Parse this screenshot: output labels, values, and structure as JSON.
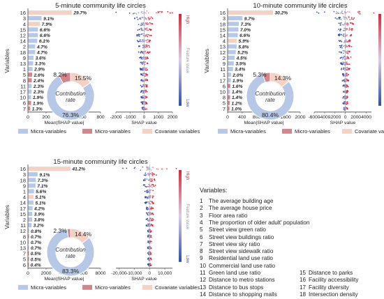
{
  "panels": [
    {
      "title": "5-minute community life circles",
      "rows": [
        {
          "var": "16",
          "value": 29.7,
          "label": "29.7%",
          "group": "covariate"
        },
        {
          "var": "3",
          "value": 9.1,
          "label": "9.1%",
          "group": "micra"
        },
        {
          "var": "4",
          "value": 7.9,
          "label": "7.9%",
          "group": "covariate"
        },
        {
          "var": "15",
          "value": 6.6,
          "label": "6.6%",
          "group": "micra"
        },
        {
          "var": "12",
          "value": 6.6,
          "label": "6.6%",
          "group": "micra"
        },
        {
          "var": "14",
          "value": 6.1,
          "label": "6.1%",
          "group": "micra"
        },
        {
          "var": "2",
          "value": 4.7,
          "label": "4.7%",
          "group": "micra"
        },
        {
          "var": "18",
          "value": 4.7,
          "label": "4.7%",
          "group": "micra"
        },
        {
          "var": "9",
          "value": 3.6,
          "label": "3.6%",
          "group": "micra"
        },
        {
          "var": "13",
          "value": 3.3,
          "label": "3.3%",
          "group": "micra"
        },
        {
          "var": "1",
          "value": 2.9,
          "label": "2.9%",
          "group": "micra"
        },
        {
          "var": "5",
          "value": 2.6,
          "label": "2.6%",
          "group": "micro"
        },
        {
          "var": "8",
          "value": 2.4,
          "label": "2.4%",
          "group": "micro"
        },
        {
          "var": "11",
          "value": 2.3,
          "label": "2.3%",
          "group": "micra"
        },
        {
          "var": "17",
          "value": 2.3,
          "label": "2.3%",
          "group": "micra"
        },
        {
          "var": "10",
          "value": 1.9,
          "label": "1.9%",
          "group": "micra"
        },
        {
          "var": "6",
          "value": 1.9,
          "label": "1.9%",
          "group": "micro"
        },
        {
          "var": "7",
          "value": 1.3,
          "label": "1.3%",
          "group": "micro"
        }
      ],
      "bar_axis": {
        "ticks": [
          "0",
          "200",
          "400",
          "600",
          "800"
        ],
        "max": 800,
        "label": "Mean|SHAP value|"
      },
      "bee_axis": {
        "ticks": [
          "-2000",
          "-1000",
          "0",
          "1000",
          "2000"
        ],
        "min": -2000,
        "max": 2000,
        "label": "SHAP value"
      },
      "donut": {
        "center": "Contribution rate",
        "micra": 76.3,
        "micro": 8.2,
        "covariate": 15.5,
        "micra_label": "76.3%",
        "micro_label": "8.2%",
        "covariate_label": "15.5%"
      }
    },
    {
      "title": "10-minute community life circles",
      "rows": [
        {
          "var": "16",
          "value": 30.2,
          "label": "30.2%",
          "group": "covariate"
        },
        {
          "var": "3",
          "value": 9.7,
          "label": "9.7%",
          "group": "micra"
        },
        {
          "var": "18",
          "value": 7.3,
          "label": "7.3%",
          "group": "micra"
        },
        {
          "var": "15",
          "value": 7.0,
          "label": "7.0%",
          "group": "micra"
        },
        {
          "var": "14",
          "value": 6.6,
          "label": "6.6%",
          "group": "micra"
        },
        {
          "var": "4",
          "value": 5.9,
          "label": "5.9%",
          "group": "covariate"
        },
        {
          "var": "13",
          "value": 5.8,
          "label": "5.8%",
          "group": "micra"
        },
        {
          "var": "12",
          "value": 5.2,
          "label": "5.2%",
          "group": "micra"
        },
        {
          "var": "2",
          "value": 4.5,
          "label": "4.5%",
          "group": "micra"
        },
        {
          "var": "9",
          "value": 3.9,
          "label": "3.9%",
          "group": "micra"
        },
        {
          "var": "11",
          "value": 3.4,
          "label": "3.4%",
          "group": "micra"
        },
        {
          "var": "1",
          "value": 2.0,
          "label": "2.0%",
          "group": "micra"
        },
        {
          "var": "17",
          "value": 1.9,
          "label": "1.9%",
          "group": "micra"
        },
        {
          "var": "6",
          "value": 1.6,
          "label": "1.6%",
          "group": "micro"
        },
        {
          "var": "10",
          "value": 1.4,
          "label": "1.4%",
          "group": "micra"
        },
        {
          "var": "8",
          "value": 1.4,
          "label": "1.4%",
          "group": "micro"
        },
        {
          "var": "5",
          "value": 1.2,
          "label": "1.2%",
          "group": "micro"
        },
        {
          "var": "7",
          "value": 1.0,
          "label": "1.0%",
          "group": "micro"
        }
      ],
      "bar_axis": {
        "ticks": [
          "0",
          "400",
          "800",
          "1200",
          "1600",
          "2000"
        ],
        "max": 2000,
        "label": "Mean|SHAP value|"
      },
      "bee_axis": {
        "ticks": [
          "-6000",
          "-4000",
          "-2000",
          "0",
          "2000",
          "4000"
        ],
        "min": -6000,
        "max": 5000,
        "label": "SHAP value"
      },
      "donut": {
        "center": "Contribution rate",
        "micra": 80.4,
        "micro": 5.3,
        "covariate": 14.3,
        "micra_label": "80.4%",
        "micro_label": "5.3%",
        "covariate_label": "14.3%"
      }
    },
    {
      "title": "15-minute community life circles",
      "rows": [
        {
          "var": "16",
          "value": 41.2,
          "label": "41.2%",
          "group": "covariate"
        },
        {
          "var": "3",
          "value": 9.1,
          "label": "9.1%",
          "group": "micra"
        },
        {
          "var": "18",
          "value": 7.3,
          "label": "7.3%",
          "group": "micra"
        },
        {
          "var": "9",
          "value": 7.1,
          "label": "7.1%",
          "group": "micra"
        },
        {
          "var": "1",
          "value": 5.6,
          "label": "5.6%",
          "group": "micra"
        },
        {
          "var": "4",
          "value": 5.1,
          "label": "5.1%",
          "group": "covariate"
        },
        {
          "var": "14",
          "value": 5.1,
          "label": "5.1%",
          "group": "micra"
        },
        {
          "var": "17",
          "value": 4.2,
          "label": "4.2%",
          "group": "micra"
        },
        {
          "var": "15",
          "value": 3.9,
          "label": "3.9%",
          "group": "micra"
        },
        {
          "var": "2",
          "value": 3.8,
          "label": "3.8%",
          "group": "micra"
        },
        {
          "var": "11",
          "value": 3.2,
          "label": "3.2%",
          "group": "micra"
        },
        {
          "var": "12",
          "value": 0.8,
          "label": "0.8%",
          "group": "micra"
        },
        {
          "var": "8",
          "value": 0.7,
          "label": "0.7%",
          "group": "micro"
        },
        {
          "var": "10",
          "value": 0.7,
          "label": "0.7%",
          "group": "micra"
        },
        {
          "var": "13",
          "value": 0.7,
          "label": "0.7%",
          "group": "micra"
        },
        {
          "var": "7",
          "value": 0.5,
          "label": "0.5%",
          "group": "micro"
        },
        {
          "var": "5",
          "value": 0.5,
          "label": "0.5%",
          "group": "micro"
        },
        {
          "var": "6",
          "value": 0.4,
          "label": "0.4%",
          "group": "micro"
        }
      ],
      "bar_axis": {
        "ticks": [
          "0",
          "2000",
          "4000",
          "6000",
          "8000"
        ],
        "max": 8000,
        "label": "Mean|SHAP value|"
      },
      "bee_axis": {
        "ticks": [
          "-20,000",
          "-10,000",
          "0",
          "10,000"
        ],
        "min": -22000,
        "max": 15000,
        "tick_values": [
          -20000,
          -10000,
          0,
          10000
        ],
        "label": "SHAP value"
      },
      "donut": {
        "center": "Contribution rate",
        "micra": 83.3,
        "micro": 2.3,
        "covariate": 14.4,
        "micra_label": "83.3%",
        "micro_label": "2.3%",
        "covariate_label": "14.4%"
      }
    }
  ],
  "common": {
    "ylabel": "Variables",
    "colorbar": {
      "high": "High",
      "low": "Low",
      "label": "Feature value"
    },
    "legend": [
      {
        "name": "Micra-variables",
        "color": "#b7c7e6"
      },
      {
        "name": "Micro-variables",
        "color": "#d4848b"
      },
      {
        "name": "Covariate variables",
        "color": "#f3d1c5"
      }
    ],
    "colors": {
      "micra": "#b7c7e6",
      "micro": "#d4848b",
      "covariate": "#f3d1c5",
      "low": "#2c4fa8",
      "high": "#d8283a"
    }
  },
  "variables": {
    "title": "Variables:",
    "col1": [
      {
        "num": "1",
        "name": "The average building age"
      },
      {
        "num": "2",
        "name": "The average house price"
      },
      {
        "num": "3",
        "name": "Floor area ratio"
      },
      {
        "num": "4",
        "name": "The proportion of older adult' population"
      },
      {
        "num": "5",
        "name": "Street view green ratio"
      },
      {
        "num": "6",
        "name": "Street view buildings ratio"
      },
      {
        "num": "7",
        "name": "Street view sky ratio"
      },
      {
        "num": "8",
        "name": "Street view sidewalk ratio"
      },
      {
        "num": "9",
        "name": "Residential land use ratio"
      },
      {
        "num": "10",
        "name": "Commercial land use ratio"
      },
      {
        "num": "11",
        "name": "Green land use ratio"
      },
      {
        "num": "12",
        "name": "Distance to metro stations"
      },
      {
        "num": "13",
        "name": "Distance to bus stops"
      },
      {
        "num": "14",
        "name": "Distance to shopping malls"
      }
    ],
    "col2": [
      {
        "num": "15",
        "name": "Distance to parks"
      },
      {
        "num": "16",
        "name": "Facility accessibility"
      },
      {
        "num": "17",
        "name": "Facility diversity"
      },
      {
        "num": "18",
        "name": "Intersection density"
      }
    ]
  }
}
